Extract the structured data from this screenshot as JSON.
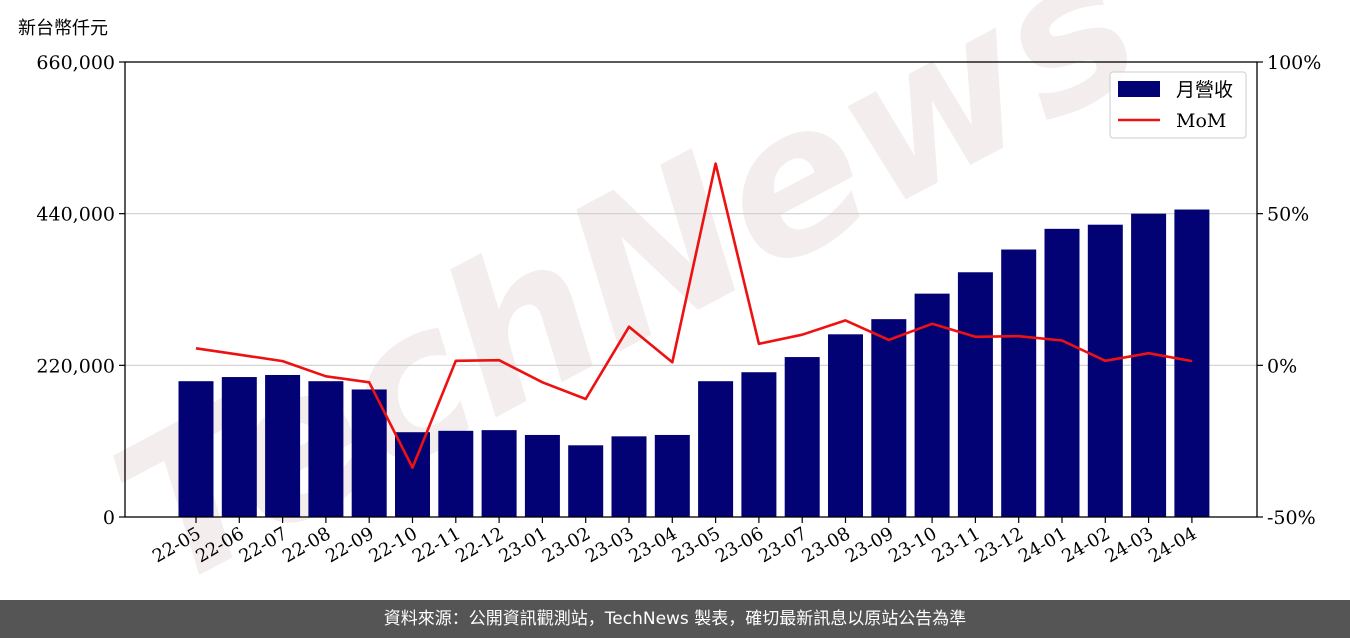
{
  "footer": {
    "source": "資料來源：公開資訊觀測站，TechNews 製表，確切最新訊息以原站公告為準"
  },
  "watermark": {
    "text": "TechNews"
  },
  "colors": {
    "bar": "#020274",
    "line": "#ee1111",
    "grid": "#cfcfcf",
    "watermark": "#eadede",
    "footer_bg": "#555555"
  },
  "chart_data": {
    "type": "bar",
    "unit_label": "新台幣仟元",
    "categories": [
      "22-05",
      "22-06",
      "22-07",
      "22-08",
      "22-09",
      "22-10",
      "22-11",
      "22-12",
      "23-01",
      "23-02",
      "23-03",
      "23-04",
      "23-05",
      "23-06",
      "23-07",
      "23-08",
      "23-09",
      "23-10",
      "23-11",
      "23-12",
      "24-01",
      "24-02",
      "24-03",
      "24-04"
    ],
    "series": [
      {
        "name": "月營收",
        "type": "bar",
        "axis": "left",
        "values": [
          197000,
          203000,
          206000,
          197000,
          185000,
          123000,
          125000,
          126000,
          119000,
          104000,
          117000,
          119000,
          197000,
          210000,
          232000,
          265000,
          287000,
          324000,
          355000,
          388000,
          418000,
          424000,
          440000,
          446000
        ]
      },
      {
        "name": "MoM",
        "type": "line",
        "axis": "right",
        "values": [
          5.6,
          3.5,
          1.4,
          -3.6,
          -5.6,
          -33.7,
          1.5,
          1.7,
          -5.6,
          -11.1,
          12.7,
          1.0,
          66.5,
          7.1,
          10.1,
          14.8,
          8.4,
          13.7,
          9.4,
          9.6,
          8.2,
          1.5,
          4.0,
          1.4
        ]
      }
    ],
    "y_left": {
      "lim": [
        0,
        660000
      ],
      "ticks": [
        "0",
        "220,000",
        "440,000",
        "660,000"
      ]
    },
    "y_right": {
      "lim": [
        -50,
        100
      ],
      "ticks": [
        "-50%",
        "0%",
        "50%",
        "100%"
      ]
    },
    "grid": "horizontal",
    "legend": "top-right"
  }
}
